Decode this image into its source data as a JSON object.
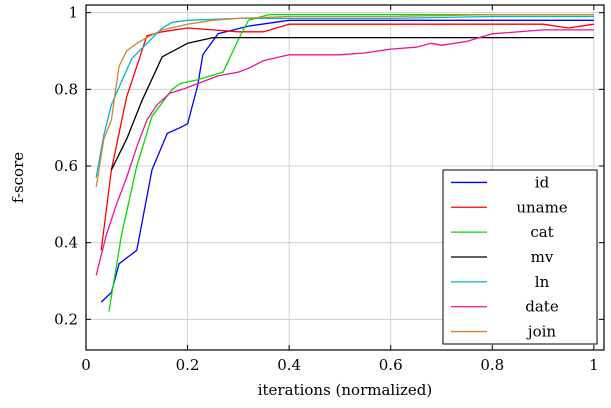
{
  "chart_data": {
    "type": "line",
    "xlabel": "iterations (normalized)",
    "ylabel": "f-score",
    "xlim": [
      0,
      1.02
    ],
    "ylim": [
      0.12,
      1.02
    ],
    "x_ticks": [
      0,
      0.2,
      0.4,
      0.6,
      0.8,
      1
    ],
    "x_tick_labels": [
      "0",
      "0.2",
      "0.4",
      "0.6",
      "0.8",
      "1"
    ],
    "y_ticks": [
      0.2,
      0.4,
      0.6,
      0.8,
      1
    ],
    "y_tick_labels": [
      "0.2",
      "0.4",
      "0.6",
      "0.8",
      "1"
    ],
    "grid": true,
    "legend_position": "bottom-right",
    "series": [
      {
        "name": "id",
        "color": "#0000ff",
        "points": [
          [
            0.03,
            0.245
          ],
          [
            0.05,
            0.27
          ],
          [
            0.065,
            0.345
          ],
          [
            0.1,
            0.38
          ],
          [
            0.13,
            0.59
          ],
          [
            0.16,
            0.685
          ],
          [
            0.185,
            0.7
          ],
          [
            0.2,
            0.71
          ],
          [
            0.22,
            0.81
          ],
          [
            0.23,
            0.89
          ],
          [
            0.26,
            0.945
          ],
          [
            0.32,
            0.965
          ],
          [
            0.4,
            0.98
          ],
          [
            0.6,
            0.98
          ],
          [
            0.8,
            0.98
          ],
          [
            1.0,
            0.98
          ]
        ]
      },
      {
        "name": "uname",
        "color": "#ff0000",
        "points": [
          [
            0.03,
            0.38
          ],
          [
            0.05,
            0.59
          ],
          [
            0.08,
            0.78
          ],
          [
            0.1,
            0.86
          ],
          [
            0.12,
            0.94
          ],
          [
            0.15,
            0.95
          ],
          [
            0.2,
            0.96
          ],
          [
            0.25,
            0.955
          ],
          [
            0.3,
            0.95
          ],
          [
            0.35,
            0.95
          ],
          [
            0.4,
            0.97
          ],
          [
            0.6,
            0.97
          ],
          [
            0.8,
            0.97
          ],
          [
            0.9,
            0.97
          ],
          [
            0.95,
            0.96
          ],
          [
            1.0,
            0.97
          ]
        ]
      },
      {
        "name": "cat",
        "color": "#00dd00",
        "points": [
          [
            0.045,
            0.22
          ],
          [
            0.07,
            0.42
          ],
          [
            0.1,
            0.6
          ],
          [
            0.13,
            0.73
          ],
          [
            0.17,
            0.8
          ],
          [
            0.185,
            0.815
          ],
          [
            0.22,
            0.825
          ],
          [
            0.27,
            0.845
          ],
          [
            0.3,
            0.93
          ],
          [
            0.32,
            0.98
          ],
          [
            0.36,
            0.995
          ],
          [
            0.5,
            0.995
          ],
          [
            0.6,
            0.995
          ],
          [
            0.8,
            0.995
          ],
          [
            1.0,
            0.995
          ]
        ]
      },
      {
        "name": "mv",
        "color": "#000000",
        "points": [
          [
            0.05,
            0.59
          ],
          [
            0.08,
            0.67
          ],
          [
            0.11,
            0.77
          ],
          [
            0.15,
            0.885
          ],
          [
            0.2,
            0.92
          ],
          [
            0.25,
            0.935
          ],
          [
            0.3,
            0.935
          ],
          [
            0.5,
            0.935
          ],
          [
            0.7,
            0.935
          ],
          [
            0.8,
            0.935
          ],
          [
            0.9,
            0.935
          ],
          [
            1.0,
            0.935
          ]
        ]
      },
      {
        "name": "ln",
        "color": "#00b8c8",
        "points": [
          [
            0.02,
            0.57
          ],
          [
            0.035,
            0.68
          ],
          [
            0.05,
            0.76
          ],
          [
            0.07,
            0.82
          ],
          [
            0.09,
            0.88
          ],
          [
            0.12,
            0.92
          ],
          [
            0.15,
            0.96
          ],
          [
            0.17,
            0.975
          ],
          [
            0.2,
            0.98
          ],
          [
            0.3,
            0.985
          ],
          [
            0.4,
            0.985
          ],
          [
            0.6,
            0.985
          ],
          [
            0.8,
            0.99
          ],
          [
            1.0,
            0.99
          ]
        ]
      },
      {
        "name": "date",
        "color": "#ee1199",
        "points": [
          [
            0.02,
            0.315
          ],
          [
            0.04,
            0.42
          ],
          [
            0.06,
            0.5
          ],
          [
            0.08,
            0.57
          ],
          [
            0.1,
            0.65
          ],
          [
            0.12,
            0.72
          ],
          [
            0.14,
            0.76
          ],
          [
            0.165,
            0.79
          ],
          [
            0.19,
            0.8
          ],
          [
            0.22,
            0.815
          ],
          [
            0.26,
            0.835
          ],
          [
            0.3,
            0.845
          ],
          [
            0.32,
            0.855
          ],
          [
            0.35,
            0.875
          ],
          [
            0.4,
            0.89
          ],
          [
            0.45,
            0.89
          ],
          [
            0.5,
            0.89
          ],
          [
            0.55,
            0.895
          ],
          [
            0.6,
            0.905
          ],
          [
            0.65,
            0.91
          ],
          [
            0.68,
            0.92
          ],
          [
            0.7,
            0.915
          ],
          [
            0.75,
            0.925
          ],
          [
            0.8,
            0.945
          ],
          [
            0.9,
            0.955
          ],
          [
            0.95,
            0.955
          ],
          [
            1.0,
            0.955
          ]
        ]
      },
      {
        "name": "join",
        "color": "#cc8833",
        "points": [
          [
            0.02,
            0.545
          ],
          [
            0.035,
            0.67
          ],
          [
            0.05,
            0.72
          ],
          [
            0.065,
            0.86
          ],
          [
            0.08,
            0.9
          ],
          [
            0.1,
            0.92
          ],
          [
            0.12,
            0.935
          ],
          [
            0.15,
            0.955
          ],
          [
            0.2,
            0.97
          ],
          [
            0.25,
            0.98
          ],
          [
            0.3,
            0.985
          ],
          [
            0.4,
            0.99
          ],
          [
            0.6,
            0.99
          ],
          [
            0.8,
            0.995
          ],
          [
            1.0,
            0.995
          ]
        ]
      }
    ]
  }
}
